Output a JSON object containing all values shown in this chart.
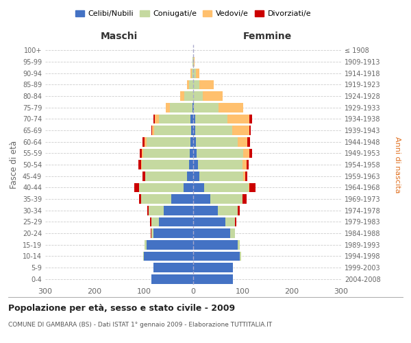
{
  "age_groups": [
    "0-4",
    "5-9",
    "10-14",
    "15-19",
    "20-24",
    "25-29",
    "30-34",
    "35-39",
    "40-44",
    "45-49",
    "50-54",
    "55-59",
    "60-64",
    "65-69",
    "70-74",
    "75-79",
    "80-84",
    "85-89",
    "90-94",
    "95-99",
    "100+"
  ],
  "birth_years": [
    "2004-2008",
    "1999-2003",
    "1994-1998",
    "1989-1993",
    "1984-1988",
    "1979-1983",
    "1974-1978",
    "1969-1973",
    "1964-1968",
    "1959-1963",
    "1954-1958",
    "1949-1953",
    "1944-1948",
    "1939-1943",
    "1934-1938",
    "1929-1933",
    "1924-1928",
    "1919-1923",
    "1914-1918",
    "1909-1913",
    "≤ 1908"
  ],
  "maschi": {
    "celibi": [
      85,
      80,
      100,
      95,
      80,
      70,
      60,
      45,
      20,
      12,
      9,
      7,
      5,
      4,
      5,
      2,
      0,
      0,
      0,
      0,
      0
    ],
    "coniugati": [
      0,
      0,
      1,
      3,
      5,
      15,
      30,
      60,
      90,
      85,
      95,
      95,
      90,
      75,
      65,
      45,
      18,
      8,
      3,
      1,
      0
    ],
    "vedovi": [
      0,
      0,
      0,
      0,
      0,
      0,
      0,
      0,
      0,
      0,
      1,
      2,
      3,
      5,
      8,
      8,
      8,
      5,
      2,
      0,
      0
    ],
    "divorziati": [
      0,
      0,
      0,
      0,
      1,
      2,
      3,
      5,
      10,
      6,
      6,
      5,
      5,
      1,
      3,
      0,
      0,
      0,
      0,
      0,
      0
    ]
  },
  "femmine": {
    "nubili": [
      80,
      80,
      95,
      90,
      75,
      65,
      50,
      35,
      22,
      12,
      10,
      7,
      5,
      4,
      4,
      2,
      0,
      0,
      0,
      0,
      0
    ],
    "coniugate": [
      0,
      0,
      2,
      5,
      10,
      20,
      40,
      65,
      90,
      90,
      90,
      95,
      85,
      75,
      65,
      50,
      20,
      12,
      5,
      1,
      0
    ],
    "vedove": [
      0,
      0,
      0,
      0,
      0,
      0,
      0,
      0,
      2,
      3,
      8,
      12,
      20,
      35,
      45,
      50,
      40,
      30,
      8,
      2,
      0
    ],
    "divorziate": [
      0,
      0,
      0,
      0,
      0,
      2,
      5,
      8,
      12,
      5,
      5,
      5,
      5,
      2,
      5,
      0,
      0,
      0,
      0,
      0,
      0
    ]
  },
  "colors": {
    "celibi": "#4472c4",
    "coniugati": "#c5d9a0",
    "vedovi": "#ffc06e",
    "divorziati": "#cc0000"
  },
  "title": "Popolazione per età, sesso e stato civile - 2009",
  "subtitle": "COMUNE DI GAMBARA (BS) - Dati ISTAT 1° gennaio 2009 - Elaborazione TUTTITALIA.IT",
  "ylabel_left": "Fasce di età",
  "ylabel_right": "Anni di nascita",
  "xlabel_left": "Maschi",
  "xlabel_right": "Femmine",
  "xlim": 300,
  "legend_labels": [
    "Celibi/Nubili",
    "Coniugati/e",
    "Vedovi/e",
    "Divorziati/e"
  ],
  "background_color": "#ffffff",
  "grid_color": "#cccccc"
}
